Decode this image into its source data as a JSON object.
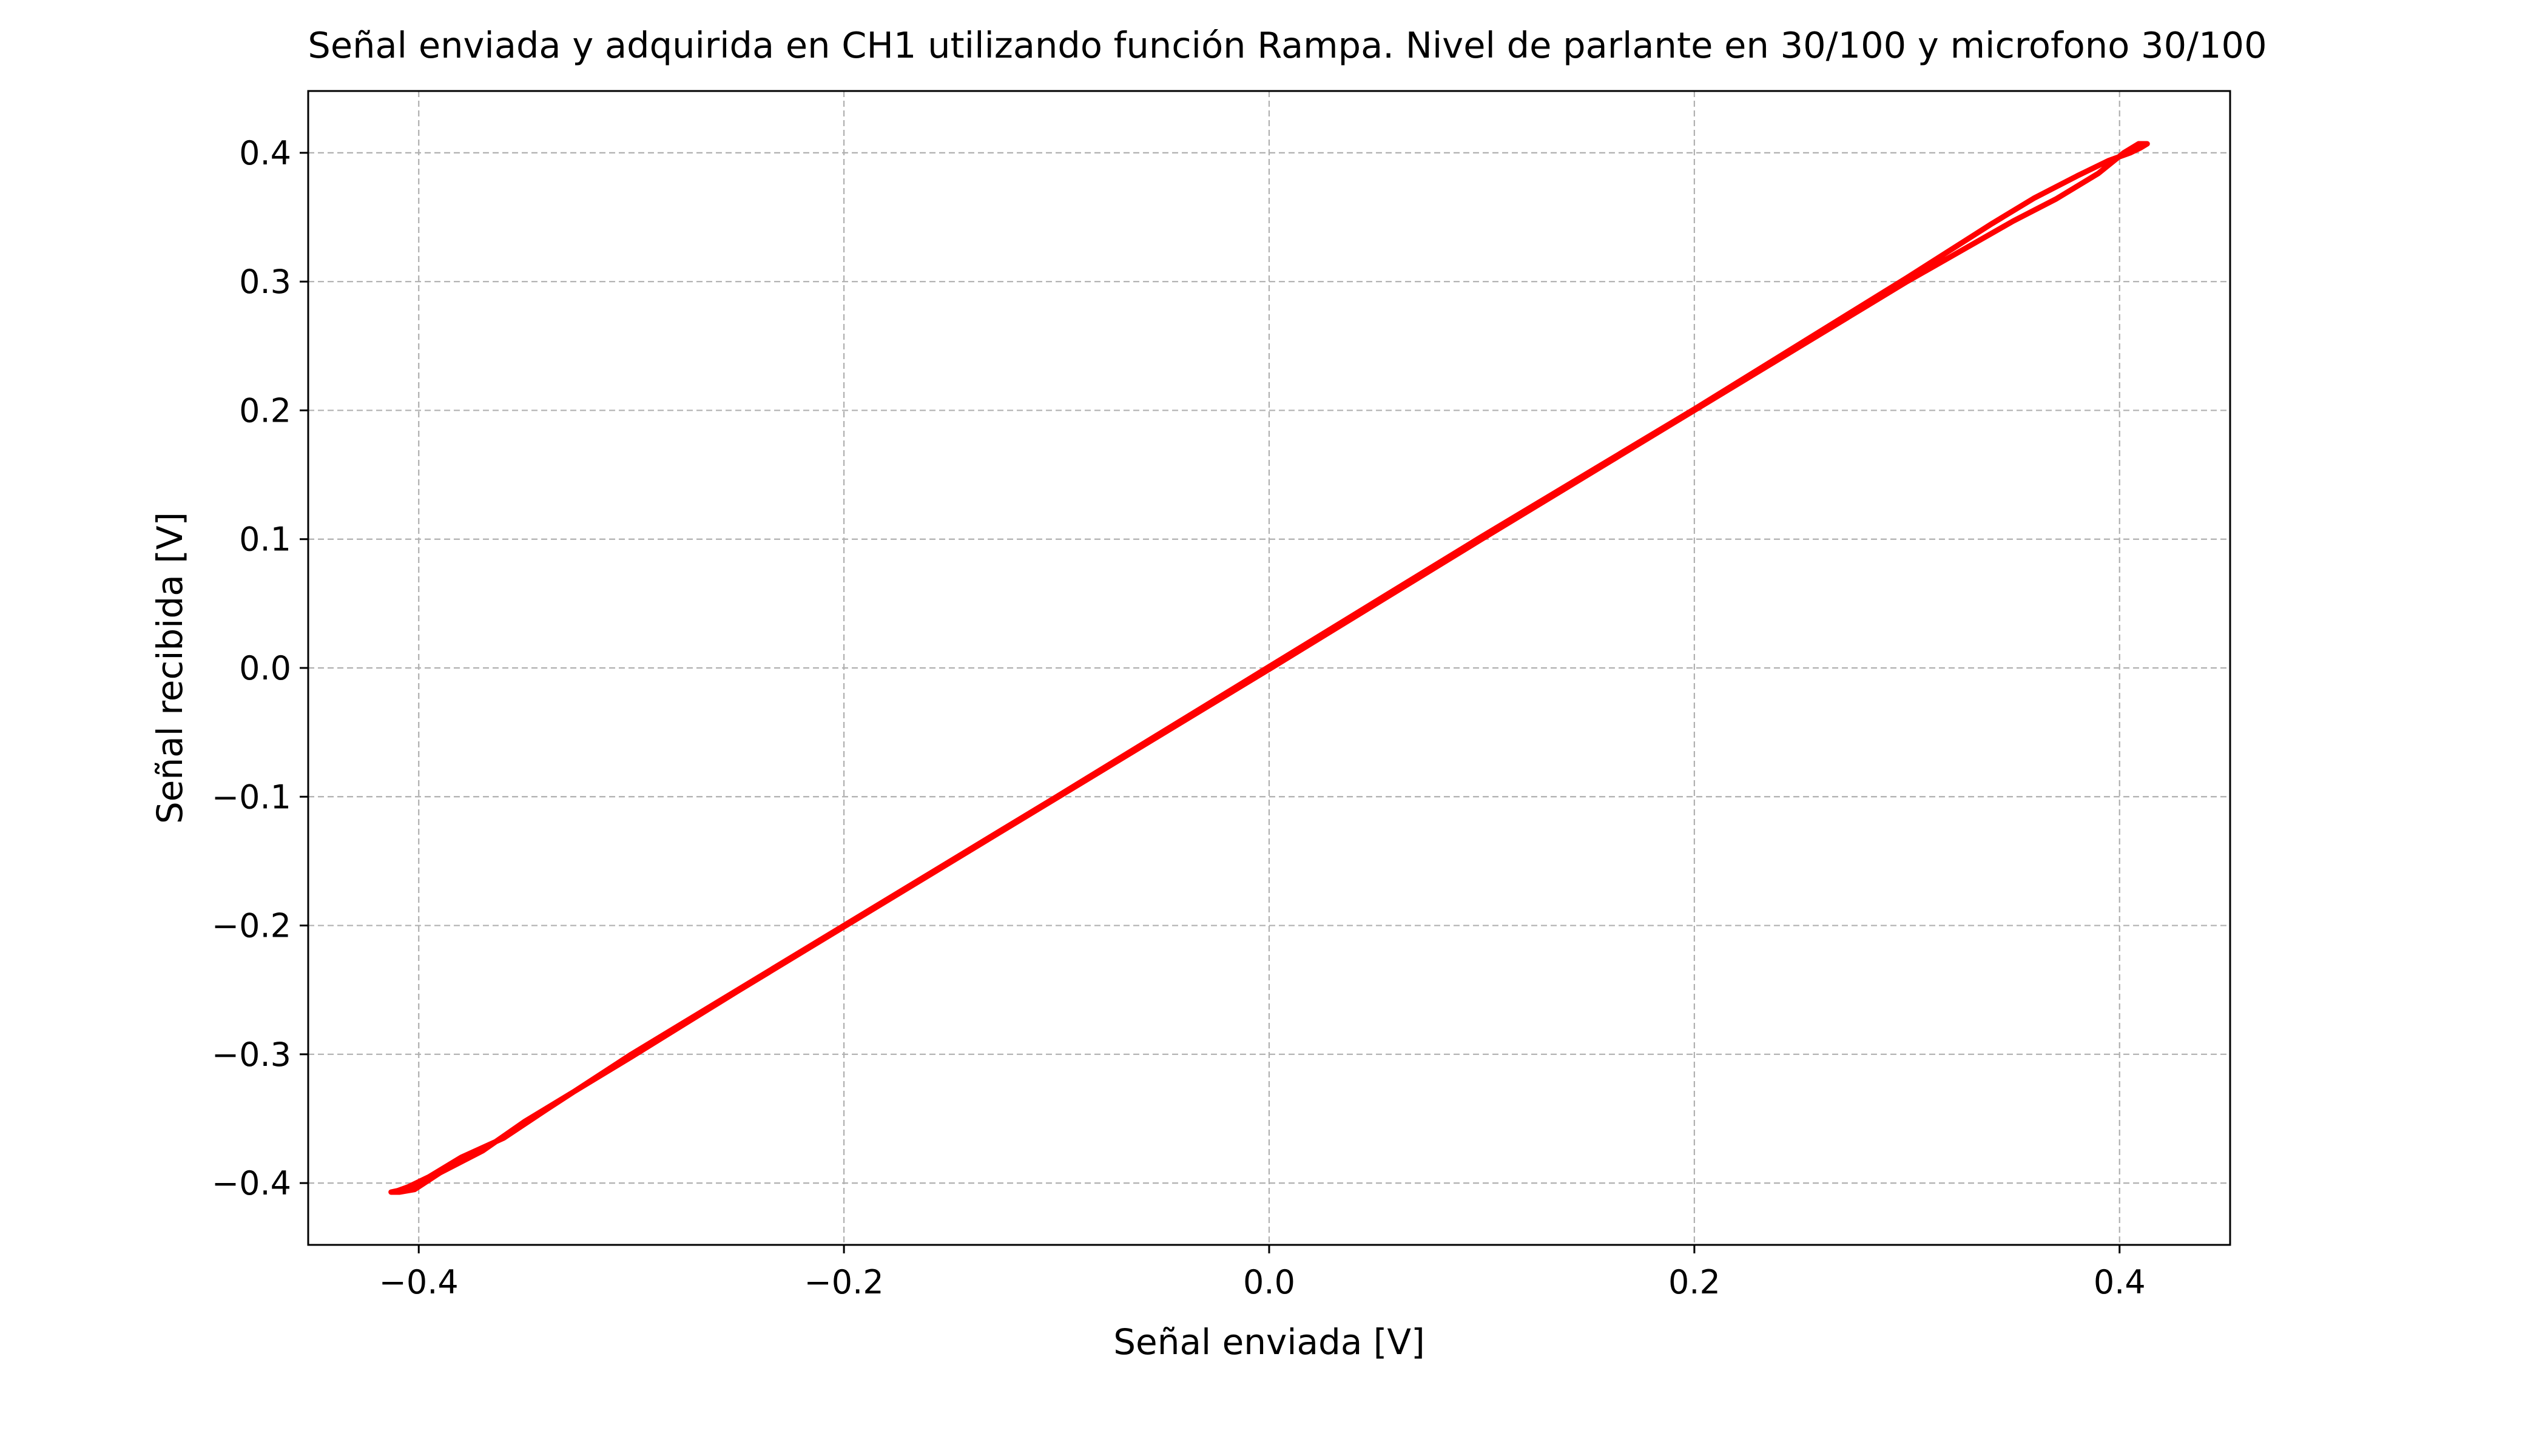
{
  "chart_data": {
    "type": "line",
    "title": "Señal enviada y adquirida en CH1 utilizando función Rampa. Nivel de parlante en 30/100 y microfono 30/100",
    "xlabel": "Señal enviada [V]",
    "ylabel": "Señal recibida [V]",
    "xlim": [
      -0.452,
      0.452
    ],
    "ylim": [
      -0.448,
      0.448
    ],
    "grid": true,
    "legend": "none",
    "x_ticks": [
      {
        "value": -0.4,
        "label": "−0.4"
      },
      {
        "value": -0.2,
        "label": "−0.2"
      },
      {
        "value": 0.0,
        "label": "0.0"
      },
      {
        "value": 0.2,
        "label": "0.2"
      },
      {
        "value": 0.4,
        "label": "0.4"
      }
    ],
    "y_ticks": [
      {
        "value": -0.4,
        "label": "−0.4"
      },
      {
        "value": -0.3,
        "label": "−0.3"
      },
      {
        "value": -0.2,
        "label": "−0.2"
      },
      {
        "value": -0.1,
        "label": "−0.1"
      },
      {
        "value": 0.0,
        "label": "0.0"
      },
      {
        "value": 0.1,
        "label": "0.1"
      },
      {
        "value": 0.2,
        "label": "0.2"
      },
      {
        "value": 0.3,
        "label": "0.3"
      },
      {
        "value": 0.4,
        "label": "0.4"
      }
    ],
    "series": [
      {
        "color": "#ff0000",
        "x": [
          -0.413,
          -0.409,
          -0.402,
          -0.39,
          -0.37,
          -0.35,
          -0.3,
          -0.25,
          -0.2,
          -0.1,
          0.0,
          0.1,
          0.2,
          0.25,
          0.3,
          0.35,
          0.37,
          0.39,
          0.402,
          0.409,
          0.413,
          0.41,
          0.405,
          0.395,
          0.38,
          0.36,
          0.34,
          0.3,
          0.2,
          0.1,
          0.0,
          -0.1,
          -0.2,
          -0.3,
          -0.34,
          -0.36,
          -0.38,
          -0.395,
          -0.405,
          -0.41,
          -0.413
        ],
        "y": [
          -0.407,
          -0.407,
          -0.405,
          -0.392,
          -0.375,
          -0.352,
          -0.302,
          -0.251,
          -0.201,
          -0.101,
          -0.001,
          0.1,
          0.2,
          0.25,
          0.3,
          0.347,
          0.364,
          0.384,
          0.4,
          0.407,
          0.407,
          0.404,
          0.4,
          0.394,
          0.382,
          0.365,
          0.345,
          0.303,
          0.201,
          0.102,
          0.001,
          -0.1,
          -0.2,
          -0.3,
          -0.343,
          -0.365,
          -0.38,
          -0.395,
          -0.403,
          -0.406,
          -0.407
        ]
      }
    ]
  }
}
